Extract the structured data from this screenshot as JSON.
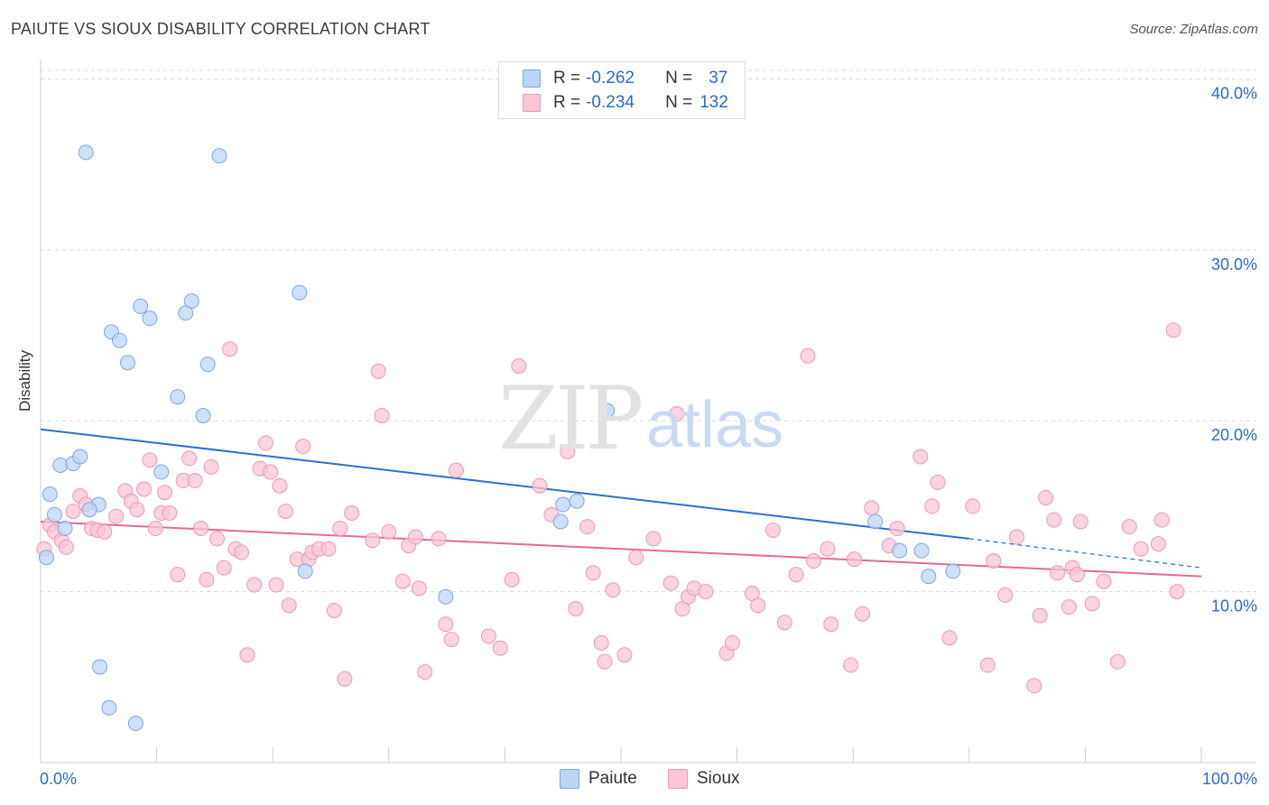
{
  "title": "PAIUTE VS SIOUX DISABILITY CORRELATION CHART",
  "source": "Source: ZipAtlas.com",
  "watermark": {
    "zip": "ZIP",
    "atlas": "atlas"
  },
  "legend_top": [
    {
      "r_label": "R =",
      "r_value": "-0.262",
      "n_label": "N =",
      "n_value": "37"
    },
    {
      "r_label": "R =",
      "r_value": "-0.234",
      "n_label": "N =",
      "n_value": "132"
    }
  ],
  "legend_bottom": [
    "Paiute",
    "Sioux"
  ],
  "colors": {
    "paiute_fill": "#bcd5f5",
    "paiute_stroke": "#7ea8e0",
    "paiute_line": "#2a6fd1",
    "sioux_fill": "#f9c6d6",
    "sioux_stroke": "#ee98b5",
    "sioux_line": "#e36a97",
    "tick_label": "#2a6cc7",
    "grid": "#d8d8d8"
  },
  "chart_data": {
    "type": "scatter",
    "title": "PAIUTE VS SIOUX DISABILITY CORRELATION CHART",
    "xlabel": "",
    "ylabel": "Disability",
    "xlim": [
      0,
      100
    ],
    "ylim": [
      0,
      40.5
    ],
    "x_tick_labels": [
      "0.0%",
      "100.0%"
    ],
    "y_ticks": [
      10,
      20,
      30,
      40
    ],
    "y_tick_labels": [
      "10.0%",
      "20.0%",
      "30.0%",
      "40.0%"
    ],
    "series": [
      {
        "name": "Paiute",
        "r": -0.262,
        "n": 37,
        "trend": {
          "x0": 0,
          "y0": 19.5,
          "x1": 80,
          "y1": 13.1,
          "dash_to_x": 100,
          "dash_to_y": 11.4
        },
        "points": [
          [
            3.9,
            35.7
          ],
          [
            15.4,
            35.5
          ],
          [
            22.3,
            27.5
          ],
          [
            8.6,
            26.7
          ],
          [
            13.0,
            27.0
          ],
          [
            9.4,
            26.0
          ],
          [
            12.5,
            26.3
          ],
          [
            6.1,
            25.2
          ],
          [
            6.8,
            24.7
          ],
          [
            7.5,
            23.4
          ],
          [
            14.4,
            23.3
          ],
          [
            11.8,
            21.4
          ],
          [
            14.0,
            20.3
          ],
          [
            48.8,
            20.6
          ],
          [
            1.7,
            17.4
          ],
          [
            2.8,
            17.5
          ],
          [
            3.4,
            17.9
          ],
          [
            10.4,
            17.0
          ],
          [
            0.8,
            15.7
          ],
          [
            5.0,
            15.1
          ],
          [
            1.2,
            14.5
          ],
          [
            4.2,
            14.8
          ],
          [
            2.1,
            13.7
          ],
          [
            45.0,
            15.1
          ],
          [
            46.2,
            15.3
          ],
          [
            0.5,
            12.0
          ],
          [
            44.8,
            14.1
          ],
          [
            71.9,
            14.1
          ],
          [
            74.0,
            12.4
          ],
          [
            75.9,
            12.4
          ],
          [
            76.5,
            10.9
          ],
          [
            78.6,
            11.2
          ],
          [
            22.8,
            11.2
          ],
          [
            34.9,
            9.7
          ],
          [
            5.1,
            5.6
          ],
          [
            5.9,
            3.2
          ],
          [
            8.2,
            2.3
          ]
        ]
      },
      {
        "name": "Sioux",
        "r": -0.234,
        "n": 132,
        "trend": {
          "x0": 0,
          "y0": 14.1,
          "x1": 100,
          "y1": 10.9
        },
        "points": [
          [
            0.3,
            12.5
          ],
          [
            0.8,
            13.9
          ],
          [
            1.2,
            13.5
          ],
          [
            1.8,
            13.0
          ],
          [
            2.2,
            12.6
          ],
          [
            2.8,
            14.7
          ],
          [
            3.4,
            15.6
          ],
          [
            3.9,
            15.1
          ],
          [
            4.4,
            13.7
          ],
          [
            4.9,
            13.6
          ],
          [
            5.5,
            13.5
          ],
          [
            6.5,
            14.4
          ],
          [
            7.3,
            15.9
          ],
          [
            7.8,
            15.3
          ],
          [
            8.3,
            14.8
          ],
          [
            8.9,
            16.0
          ],
          [
            9.4,
            17.7
          ],
          [
            9.9,
            13.7
          ],
          [
            10.4,
            14.6
          ],
          [
            10.7,
            15.8
          ],
          [
            11.1,
            14.6
          ],
          [
            11.8,
            11.0
          ],
          [
            12.3,
            16.5
          ],
          [
            12.8,
            17.8
          ],
          [
            13.3,
            16.5
          ],
          [
            13.8,
            13.7
          ],
          [
            14.3,
            10.7
          ],
          [
            14.7,
            17.3
          ],
          [
            15.2,
            13.1
          ],
          [
            15.8,
            11.4
          ],
          [
            16.3,
            24.2
          ],
          [
            16.8,
            12.5
          ],
          [
            17.3,
            12.3
          ],
          [
            17.8,
            6.3
          ],
          [
            18.4,
            10.4
          ],
          [
            18.9,
            17.2
          ],
          [
            19.4,
            18.7
          ],
          [
            19.8,
            17.0
          ],
          [
            20.3,
            10.4
          ],
          [
            20.6,
            16.2
          ],
          [
            21.1,
            14.7
          ],
          [
            21.4,
            9.2
          ],
          [
            22.1,
            11.9
          ],
          [
            22.6,
            18.5
          ],
          [
            23.1,
            11.9
          ],
          [
            23.4,
            12.3
          ],
          [
            24.0,
            12.5
          ],
          [
            24.8,
            12.5
          ],
          [
            25.3,
            8.9
          ],
          [
            25.8,
            13.7
          ],
          [
            26.2,
            4.9
          ],
          [
            26.8,
            14.6
          ],
          [
            28.6,
            13.0
          ],
          [
            29.1,
            22.9
          ],
          [
            29.4,
            20.3
          ],
          [
            30.0,
            13.5
          ],
          [
            31.2,
            10.6
          ],
          [
            31.7,
            12.7
          ],
          [
            32.3,
            13.2
          ],
          [
            32.6,
            10.2
          ],
          [
            33.1,
            5.3
          ],
          [
            34.3,
            13.1
          ],
          [
            34.9,
            8.1
          ],
          [
            35.4,
            7.2
          ],
          [
            35.8,
            17.1
          ],
          [
            38.6,
            7.4
          ],
          [
            39.6,
            6.7
          ],
          [
            40.6,
            10.7
          ],
          [
            41.2,
            23.2
          ],
          [
            43.0,
            16.2
          ],
          [
            44.0,
            14.5
          ],
          [
            45.4,
            18.2
          ],
          [
            46.1,
            9.0
          ],
          [
            47.1,
            13.8
          ],
          [
            47.6,
            11.1
          ],
          [
            48.3,
            7.0
          ],
          [
            48.6,
            5.9
          ],
          [
            49.3,
            10.1
          ],
          [
            50.3,
            6.3
          ],
          [
            51.3,
            12.0
          ],
          [
            52.8,
            13.1
          ],
          [
            54.3,
            10.5
          ],
          [
            54.8,
            20.4
          ],
          [
            55.3,
            9.0
          ],
          [
            55.8,
            9.7
          ],
          [
            56.3,
            10.2
          ],
          [
            57.3,
            10.0
          ],
          [
            59.1,
            6.4
          ],
          [
            59.6,
            7.0
          ],
          [
            61.3,
            9.9
          ],
          [
            61.8,
            9.2
          ],
          [
            63.1,
            13.6
          ],
          [
            64.1,
            8.2
          ],
          [
            65.1,
            11.0
          ],
          [
            66.1,
            23.8
          ],
          [
            66.6,
            11.8
          ],
          [
            67.8,
            12.5
          ],
          [
            68.1,
            8.1
          ],
          [
            69.8,
            5.7
          ],
          [
            70.1,
            11.9
          ],
          [
            70.8,
            8.7
          ],
          [
            71.6,
            14.9
          ],
          [
            73.1,
            12.7
          ],
          [
            73.8,
            13.7
          ],
          [
            75.8,
            17.9
          ],
          [
            76.8,
            15.0
          ],
          [
            77.3,
            16.4
          ],
          [
            78.3,
            7.3
          ],
          [
            80.3,
            15.0
          ],
          [
            81.6,
            5.7
          ],
          [
            82.1,
            11.8
          ],
          [
            83.1,
            9.8
          ],
          [
            84.1,
            13.2
          ],
          [
            85.6,
            4.5
          ],
          [
            86.1,
            8.6
          ],
          [
            86.6,
            15.5
          ],
          [
            87.3,
            14.2
          ],
          [
            87.6,
            11.1
          ],
          [
            88.6,
            9.1
          ],
          [
            88.9,
            11.4
          ],
          [
            89.3,
            11.0
          ],
          [
            89.6,
            14.1
          ],
          [
            90.6,
            9.3
          ],
          [
            91.6,
            10.6
          ],
          [
            92.8,
            5.9
          ],
          [
            93.8,
            13.8
          ],
          [
            94.8,
            12.5
          ],
          [
            96.3,
            12.8
          ],
          [
            96.6,
            14.2
          ],
          [
            97.6,
            25.3
          ],
          [
            97.9,
            10.0
          ]
        ]
      }
    ]
  }
}
